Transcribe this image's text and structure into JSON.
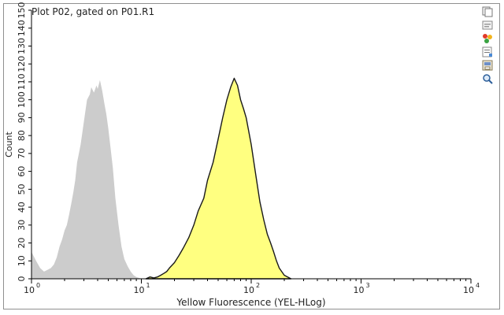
{
  "plot": {
    "title": "Plot P02, gated on P01.R1"
  },
  "toolbar": {
    "icons": [
      "copy-icon",
      "settings-icon",
      "gate-icon",
      "properties-icon",
      "export-icon",
      "zoom-icon"
    ]
  },
  "colors": {
    "control_fill": "#cccccc",
    "sample_fill": "#ffff80",
    "sample_stroke": "#1a1a1a",
    "axis": "#000000"
  },
  "chart_data": {
    "type": "area",
    "title": "Plot P02, gated on P01.R1",
    "xlabel": "Yellow Fluorescence (YEL-HLog)",
    "ylabel": "Count",
    "xscale": "log",
    "xlim": [
      1,
      10000
    ],
    "ylim": [
      0,
      150
    ],
    "xticks": [
      {
        "value": 1,
        "base": "10",
        "exp": "0"
      },
      {
        "value": 10,
        "base": "10",
        "exp": "1"
      },
      {
        "value": 100,
        "base": "10",
        "exp": "2"
      },
      {
        "value": 1000,
        "base": "10",
        "exp": "3"
      },
      {
        "value": 10000,
        "base": "10",
        "exp": "4"
      }
    ],
    "yticks": [
      0,
      10,
      20,
      30,
      40,
      50,
      60,
      70,
      80,
      90,
      100,
      110,
      120,
      130,
      140,
      150
    ],
    "grid": false,
    "series": [
      {
        "key": "control",
        "x": [
          1.0,
          1.1,
          1.2,
          1.3,
          1.4,
          1.5,
          1.6,
          1.7,
          1.8,
          1.9,
          2.0,
          2.1,
          2.2,
          2.3,
          2.4,
          2.5,
          2.6,
          2.8,
          3.0,
          3.2,
          3.4,
          3.5,
          3.7,
          3.9,
          4.0,
          4.2,
          4.4,
          4.6,
          4.8,
          5.0,
          5.2,
          5.5,
          5.8,
          6.2,
          6.6,
          7.0,
          7.5,
          8.0,
          8.5,
          9.0,
          9.5,
          10.0
        ],
        "y": [
          15,
          10,
          6,
          4,
          5,
          6,
          8,
          12,
          18,
          22,
          27,
          30,
          36,
          42,
          48,
          55,
          65,
          75,
          88,
          100,
          103,
          107,
          104,
          108,
          106,
          111,
          105,
          98,
          92,
          84,
          75,
          62,
          45,
          30,
          18,
          11,
          7,
          4,
          2,
          1,
          0.5,
          0
        ]
      },
      {
        "key": "sample",
        "x": [
          11,
          12,
          13,
          14,
          15,
          16,
          17,
          18,
          20,
          22,
          24,
          27,
          30,
          33,
          37,
          40,
          45,
          50,
          55,
          60,
          65,
          70,
          75,
          80,
          85,
          90,
          100,
          110,
          120,
          130,
          140,
          150,
          160,
          170,
          180,
          200,
          230
        ],
        "y": [
          0,
          1,
          0.5,
          1,
          2,
          3,
          4,
          6,
          9,
          13,
          17,
          23,
          30,
          38,
          45,
          55,
          65,
          78,
          90,
          100,
          107,
          112,
          108,
          100,
          95,
          90,
          75,
          58,
          43,
          33,
          25,
          20,
          15,
          10,
          6,
          2,
          0
        ]
      }
    ]
  }
}
